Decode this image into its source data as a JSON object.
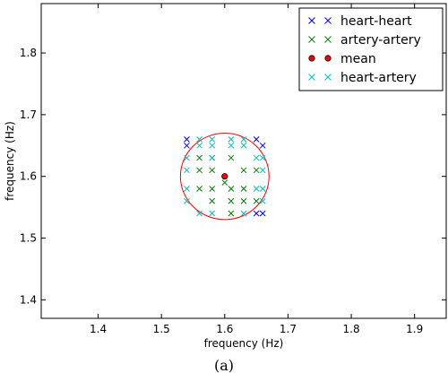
{
  "caption": "(a)",
  "chart_data": {
    "type": "scatter",
    "xlabel": "frequency (Hz)",
    "ylabel": "frequency (Hz)",
    "xlim": [
      1.31,
      1.95
    ],
    "ylim": [
      1.37,
      1.88
    ],
    "xticks": [
      1.4,
      1.5,
      1.6,
      1.7,
      1.8,
      1.9
    ],
    "yticks": [
      1.4,
      1.5,
      1.6,
      1.7,
      1.8
    ],
    "xtick_labels": [
      "1.4",
      "1.5",
      "1.6",
      "1.7",
      "1.8",
      "1.9"
    ],
    "ytick_labels": [
      "1.4",
      "1.5",
      "1.6",
      "1.7",
      "1.8"
    ],
    "grid": false,
    "legend_position": "top-right",
    "circle": {
      "center": [
        1.6,
        1.6
      ],
      "radius": 0.07,
      "color": "#ff0000"
    },
    "series": [
      {
        "name": "heart-heart",
        "marker": "x",
        "color": "#0000ff",
        "points": [
          [
            1.54,
            1.66
          ],
          [
            1.54,
            1.65
          ],
          [
            1.65,
            1.66
          ],
          [
            1.66,
            1.65
          ],
          [
            1.65,
            1.54
          ],
          [
            1.66,
            1.54
          ]
        ]
      },
      {
        "name": "artery-artery",
        "marker": "x",
        "color": "#007f00",
        "points": [
          [
            1.56,
            1.63
          ],
          [
            1.58,
            1.63
          ],
          [
            1.56,
            1.61
          ],
          [
            1.58,
            1.61
          ],
          [
            1.56,
            1.58
          ],
          [
            1.58,
            1.58
          ],
          [
            1.61,
            1.63
          ],
          [
            1.61,
            1.58
          ],
          [
            1.63,
            1.61
          ],
          [
            1.61,
            1.56
          ],
          [
            1.63,
            1.56
          ],
          [
            1.58,
            1.56
          ],
          [
            1.61,
            1.54
          ],
          [
            1.63,
            1.58
          ],
          [
            1.65,
            1.56
          ],
          [
            1.65,
            1.61
          ],
          [
            1.6,
            1.59
          ]
        ]
      },
      {
        "name": "mean",
        "marker": "o",
        "color": "#ff0000",
        "points": [
          [
            1.6,
            1.6
          ]
        ]
      },
      {
        "name": "heart-artery",
        "marker": "x",
        "color": "#00bfbf",
        "points": [
          [
            1.56,
            1.66
          ],
          [
            1.58,
            1.66
          ],
          [
            1.61,
            1.66
          ],
          [
            1.63,
            1.66
          ],
          [
            1.56,
            1.65
          ],
          [
            1.58,
            1.65
          ],
          [
            1.61,
            1.65
          ],
          [
            1.63,
            1.65
          ],
          [
            1.54,
            1.63
          ],
          [
            1.54,
            1.61
          ],
          [
            1.54,
            1.58
          ],
          [
            1.54,
            1.56
          ],
          [
            1.56,
            1.54
          ],
          [
            1.58,
            1.54
          ],
          [
            1.63,
            1.54
          ],
          [
            1.65,
            1.63
          ],
          [
            1.66,
            1.63
          ],
          [
            1.66,
            1.61
          ],
          [
            1.65,
            1.58
          ],
          [
            1.66,
            1.58
          ],
          [
            1.66,
            1.56
          ],
          [
            1.58,
            1.63
          ]
        ]
      }
    ]
  }
}
